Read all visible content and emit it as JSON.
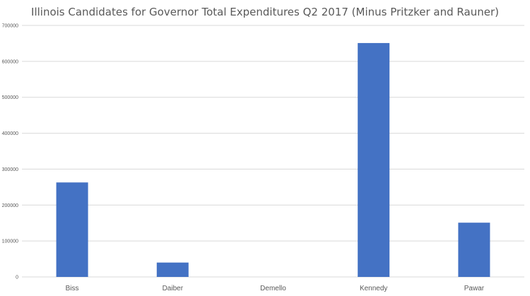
{
  "chart_data": {
    "type": "bar",
    "title": "Illinois Candidates for Governor Total Expenditures Q2 2017 (Minus Pritzker and Rauner)",
    "categories": [
      "Biss",
      "Daiber",
      "Demello",
      "Kennedy",
      "Pawar"
    ],
    "values": [
      263000,
      40000,
      0,
      651000,
      151000
    ],
    "xlabel": "",
    "ylabel": "",
    "ylim": [
      0,
      700000
    ],
    "yticks": [
      "0",
      "100000",
      "200000",
      "300000",
      "400000",
      "500000",
      "600000",
      "700000"
    ],
    "grid": true,
    "legend": "none",
    "bar_color": "#4472c4",
    "grid_color": "#d9d9d9"
  }
}
